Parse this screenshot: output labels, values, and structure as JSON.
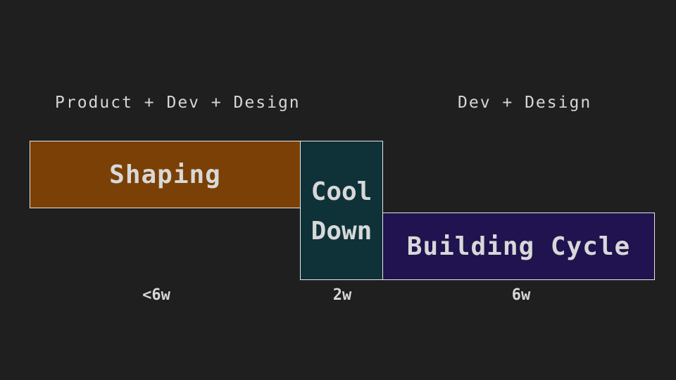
{
  "teams": {
    "left": "Product + Dev + Design",
    "right": "Dev + Design"
  },
  "phases": [
    {
      "label": "Shaping",
      "duration": "<6w",
      "color": "#7a4005"
    },
    {
      "label": "Cool\nDown",
      "duration": "2w",
      "color": "#0e3238"
    },
    {
      "label": "Building Cycle",
      "duration": "6w",
      "color": "#20134f"
    }
  ],
  "colors": {
    "background": "#1f1f1f",
    "text": "#d6d6d6",
    "border": "#e6e6e6"
  }
}
